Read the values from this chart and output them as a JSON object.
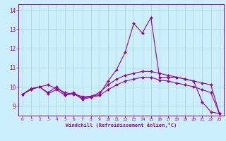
{
  "xlabel": "Windchill (Refroidissement éolien,°C)",
  "background_color": "#cceeff",
  "line_color": "#990099",
  "grid_color": "#aaddcc",
  "xlim": [
    -0.5,
    23.5
  ],
  "ylim": [
    8.5,
    14.3
  ],
  "yticks": [
    9,
    10,
    11,
    12,
    13,
    14
  ],
  "xticks": [
    0,
    1,
    2,
    3,
    4,
    5,
    6,
    7,
    8,
    9,
    10,
    11,
    12,
    13,
    14,
    15,
    16,
    17,
    18,
    19,
    20,
    21,
    22,
    23
  ],
  "curve1_x": [
    0,
    1,
    2,
    3,
    4,
    5,
    6,
    7,
    8,
    9,
    10,
    11,
    12,
    13,
    14,
    15,
    16,
    17,
    18,
    19,
    20,
    21,
    22,
    23
  ],
  "curve1_y": [
    9.6,
    9.9,
    10.0,
    10.1,
    9.9,
    9.7,
    9.6,
    9.5,
    9.5,
    9.6,
    10.3,
    10.9,
    11.8,
    13.3,
    12.8,
    13.6,
    10.5,
    10.5,
    10.5,
    10.4,
    10.3,
    9.2,
    8.7,
    8.6
  ],
  "curve2_x": [
    0,
    1,
    2,
    3,
    4,
    5,
    6,
    7,
    8,
    9,
    10,
    11,
    12,
    13,
    14,
    15,
    16,
    17,
    18,
    19,
    20,
    21,
    22,
    23
  ],
  "curve2_y": [
    9.6,
    9.9,
    10.0,
    9.7,
    10.0,
    9.6,
    9.7,
    9.4,
    9.5,
    9.7,
    10.1,
    10.4,
    10.6,
    10.7,
    10.8,
    10.8,
    10.7,
    10.6,
    10.5,
    10.4,
    10.3,
    10.2,
    10.1,
    8.6
  ],
  "curve3_x": [
    0,
    1,
    2,
    3,
    4,
    5,
    6,
    7,
    8,
    9,
    10,
    11,
    12,
    13,
    14,
    15,
    16,
    17,
    18,
    19,
    20,
    21,
    22,
    23
  ],
  "curve3_y": [
    9.6,
    9.85,
    10.0,
    9.65,
    9.85,
    9.55,
    9.65,
    9.35,
    9.45,
    9.55,
    9.85,
    10.1,
    10.3,
    10.4,
    10.5,
    10.5,
    10.35,
    10.3,
    10.2,
    10.1,
    10.0,
    9.85,
    9.7,
    8.6
  ]
}
